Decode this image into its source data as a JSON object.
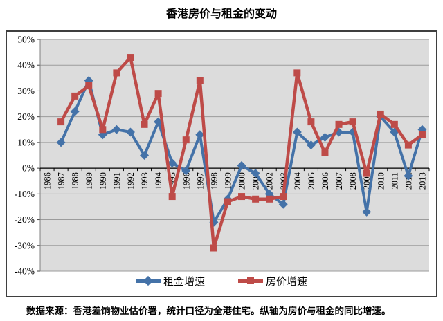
{
  "title": "香港房价与租金的变动",
  "caption": "数据来源：香港差饷物业估价署，统计口径为全港住宅。纵轴为房价与租金的同比增速。",
  "colors": {
    "rent": "#4472A8",
    "price": "#BE4B48",
    "plot_bg": "#DCDCDC",
    "grid": "#9b9b9b",
    "axis": "#000000",
    "frame": "#3f3f3f"
  },
  "chart_data": {
    "type": "line",
    "categories": [
      "1986",
      "1987",
      "1988",
      "1989",
      "1990",
      "1991",
      "1992",
      "1993",
      "1994",
      "1995",
      "1996",
      "1997",
      "1998",
      "1999",
      "2000",
      "2001",
      "2002",
      "2003",
      "2004",
      "2005",
      "2006",
      "2007",
      "2008",
      "2009",
      "2010",
      "2011",
      "2012",
      "2013"
    ],
    "series": [
      {
        "name": "租金增速",
        "marker": "diamond",
        "color": "#4472A8",
        "values": [
          null,
          10,
          22,
          34,
          13,
          15,
          14,
          5,
          18,
          2,
          -1,
          13,
          -21,
          -12,
          1,
          -2,
          -10,
          -14,
          14,
          9,
          12,
          14,
          14,
          -17,
          20,
          14,
          -3,
          15
        ]
      },
      {
        "name": "房价增速",
        "marker": "square",
        "color": "#BE4B48",
        "values": [
          null,
          18,
          28,
          32,
          15,
          37,
          43,
          17,
          29,
          -11,
          11,
          34,
          -31,
          -13,
          -11,
          -12,
          -12,
          -11,
          37,
          18,
          6,
          17,
          18,
          -2,
          21,
          17,
          9,
          13
        ]
      }
    ],
    "title": "香港房价与租金的变动",
    "xlabel": "",
    "ylabel": "",
    "ylim": [
      -40,
      50
    ],
    "ytick_step": 10,
    "ytick_format": "percent",
    "grid": true,
    "legend_position": "bottom"
  }
}
